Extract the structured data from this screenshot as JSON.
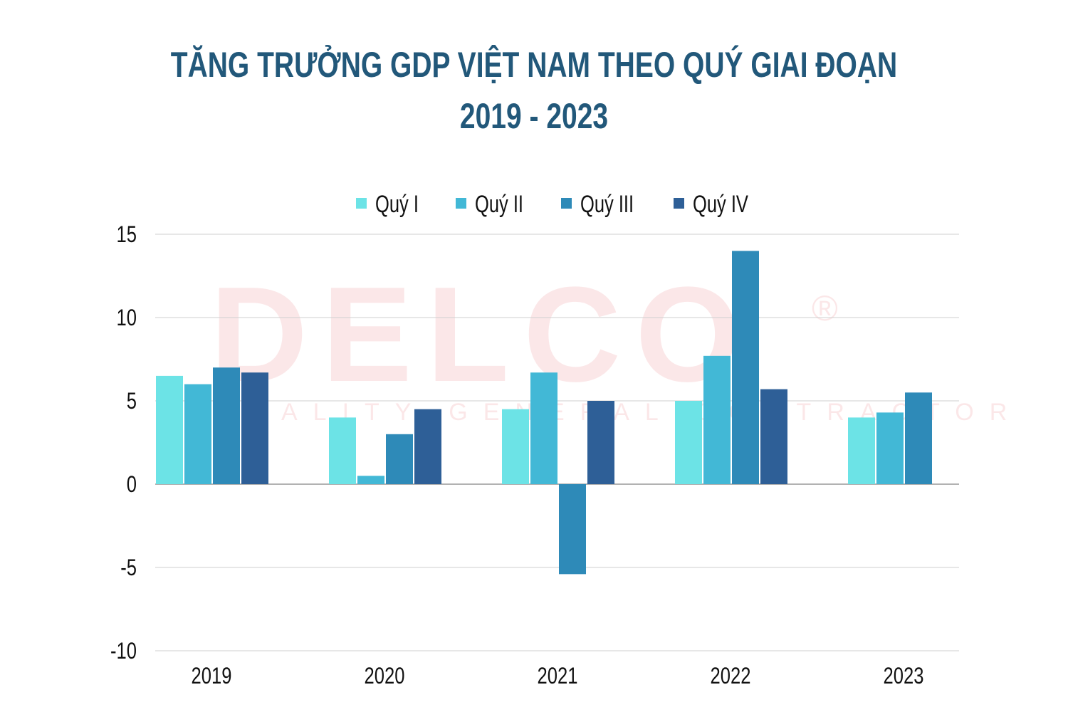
{
  "chart_data": {
    "type": "bar",
    "title_line1": "TĂNG TRƯỞNG GDP VIỆT NAM THEO QUÝ GIAI ĐOẠN",
    "title_line2": "2019 - 2023",
    "categories": [
      "2019",
      "2020",
      "2021",
      "2022",
      "2023"
    ],
    "series": [
      {
        "name": "Quý I",
        "color": "#6ce3e6",
        "values": [
          6.5,
          4.0,
          4.5,
          5.0,
          4.0
        ]
      },
      {
        "name": "Quý II",
        "color": "#42b8d6",
        "values": [
          6.0,
          0.5,
          6.7,
          7.7,
          4.3
        ]
      },
      {
        "name": "Quý III",
        "color": "#2e8ab8",
        "values": [
          7.0,
          3.0,
          -5.4,
          14.0,
          5.5
        ]
      },
      {
        "name": "Quý IV",
        "color": "#2e5f97",
        "values": [
          6.7,
          4.5,
          5.0,
          5.7,
          null
        ]
      }
    ],
    "yticks": [
      "15",
      "10",
      "5",
      "0",
      "-5",
      "-10"
    ],
    "ylim": [
      -10,
      15
    ],
    "grid": true,
    "legend": "top",
    "watermark": "DELCO® QUALITY GENERAL CONTRACTOR"
  }
}
